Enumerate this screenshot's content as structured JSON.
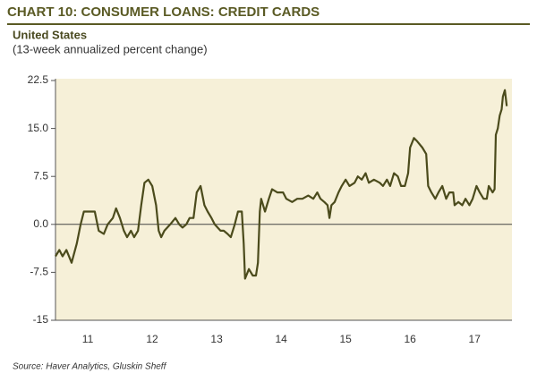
{
  "chart_data": {
    "type": "line",
    "title": "CHART 10: CONSUMER LOANS: CREDIT CARDS",
    "subtitle": "United States",
    "y_label": "(13-week annualized percent change)",
    "source": "Source: Haver Analytics, Gluskin Sheff",
    "color": "#4b4b1c",
    "background": "#f6f0d8",
    "zero_line": true,
    "xlim": [
      2011,
      2018.08
    ],
    "ylim": [
      -15,
      22.5
    ],
    "yticks": [
      -15,
      {
        "value": -7.5,
        "label": "-7.5"
      },
      {
        "value": 0,
        "label": "0.0"
      },
      7.5,
      {
        "value": 15,
        "label": "15.0"
      },
      22.5
    ],
    "xticks": [
      {
        "value": 2011.5,
        "label": "11"
      },
      {
        "value": 2012.5,
        "label": "12"
      },
      {
        "value": 2013.5,
        "label": "13"
      },
      {
        "value": 2014.5,
        "label": "14"
      },
      {
        "value": 2015.5,
        "label": "15"
      },
      {
        "value": 2016.5,
        "label": "16"
      },
      {
        "value": 2017.5,
        "label": "17"
      }
    ],
    "x": [
      2011.0,
      2011.06,
      2011.11,
      2011.17,
      2011.25,
      2011.33,
      2011.39,
      2011.44,
      2011.53,
      2011.61,
      2011.67,
      2011.75,
      2011.81,
      2011.89,
      2011.94,
      2012.0,
      2012.06,
      2012.11,
      2012.17,
      2012.22,
      2012.28,
      2012.33,
      2012.38,
      2012.44,
      2012.5,
      2012.56,
      2012.6,
      2012.64,
      2012.69,
      2012.78,
      2012.86,
      2012.92,
      2012.97,
      2013.03,
      2013.08,
      2013.14,
      2013.19,
      2013.25,
      2013.31,
      2013.36,
      2013.42,
      2013.47,
      2013.56,
      2013.61,
      2013.67,
      2013.72,
      2013.78,
      2013.83,
      2013.89,
      2013.92,
      2013.94,
      2014.0,
      2014.06,
      2014.11,
      2014.14,
      2014.17,
      2014.19,
      2014.25,
      2014.31,
      2014.36,
      2014.44,
      2014.53,
      2014.58,
      2014.67,
      2014.75,
      2014.83,
      2014.92,
      2015.0,
      2015.06,
      2015.11,
      2015.17,
      2015.22,
      2015.25,
      2015.28,
      2015.33,
      2015.39,
      2015.44,
      2015.5,
      2015.56,
      2015.64,
      2015.69,
      2015.75,
      2015.81,
      2015.86,
      2015.94,
      2016.03,
      2016.08,
      2016.14,
      2016.19,
      2016.25,
      2016.31,
      2016.36,
      2016.42,
      2016.47,
      2016.5,
      2016.56,
      2016.61,
      2016.69,
      2016.75,
      2016.78,
      2016.83,
      2016.89,
      2016.94,
      2017.0,
      2017.06,
      2017.11,
      2017.17,
      2017.19,
      2017.25,
      2017.31,
      2017.36,
      2017.42,
      2017.47,
      2017.53,
      2017.58,
      2017.64,
      2017.69,
      2017.72,
      2017.78,
      2017.81,
      2017.83,
      2017.86,
      2017.89,
      2017.92,
      2017.94,
      2017.97,
      2018.0
    ],
    "values": [
      -5,
      -4,
      -5,
      -4,
      -6,
      -3,
      0,
      2,
      2,
      2,
      -1,
      -1.5,
      0,
      1,
      2.5,
      1,
      -1,
      -2,
      -1,
      -2,
      -1,
      3,
      6.5,
      7,
      6,
      3,
      -1,
      -2,
      -1,
      0,
      1,
      0,
      -0.5,
      0,
      1,
      1,
      5,
      6,
      3,
      2,
      1,
      0,
      -1,
      -1,
      -1.5,
      -2,
      0,
      2,
      2,
      -3,
      -8.5,
      -7,
      -8,
      -8,
      -6,
      2,
      4,
      2,
      4,
      5.5,
      5,
      5,
      4,
      3.5,
      4,
      4,
      4.5,
      4,
      5,
      4,
      3.5,
      3,
      1,
      3,
      3.5,
      5,
      6,
      7,
      6,
      6.5,
      7.5,
      7,
      8,
      6.5,
      7,
      6.5,
      6,
      7,
      6,
      8,
      7.5,
      6,
      6,
      8,
      12,
      13.5,
      13,
      12,
      11,
      6,
      5,
      4,
      5,
      6,
      4,
      5,
      5,
      3,
      3.5,
      3,
      4,
      3,
      4,
      6,
      5,
      4,
      4,
      6,
      5,
      5.5,
      14,
      15,
      17,
      18,
      20,
      21,
      18.5
    ]
  }
}
